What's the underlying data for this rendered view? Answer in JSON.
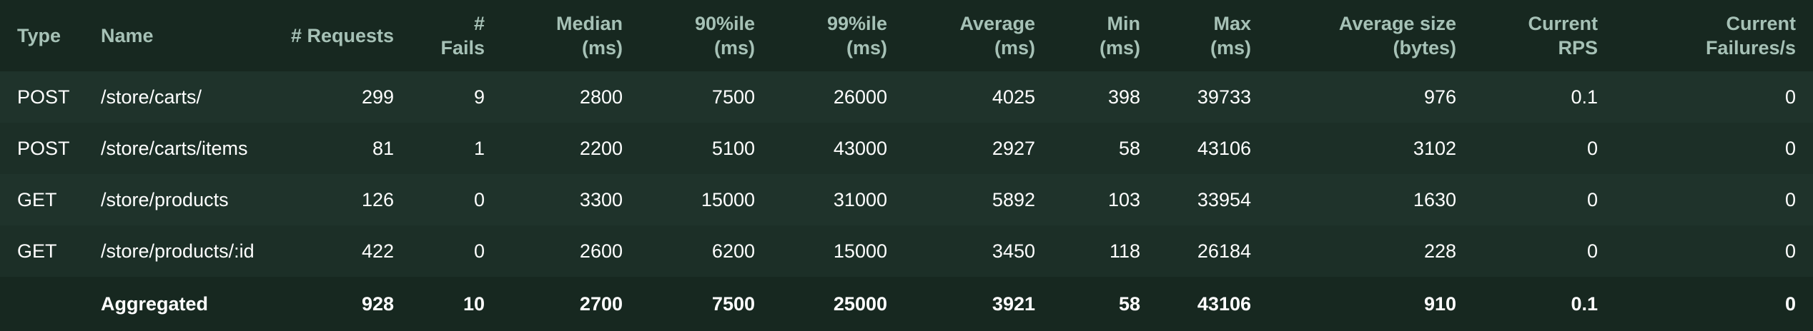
{
  "columns": {
    "type": "Type",
    "name": "Name",
    "requests": "# Requests",
    "fails": "# Fails",
    "median": "Median\n(ms)",
    "p90": "90%ile\n(ms)",
    "p99": "99%ile\n(ms)",
    "average": "Average\n(ms)",
    "min": "Min\n(ms)",
    "max": "Max\n(ms)",
    "avg_size": "Average size\n(bytes)",
    "rps": "Current\nRPS",
    "failures_s": "Current\nFailures/s"
  },
  "rows": [
    {
      "type": "POST",
      "name": "/store/carts/",
      "requests": "299",
      "fails": "9",
      "median": "2800",
      "p90": "7500",
      "p99": "26000",
      "average": "4025",
      "min": "398",
      "max": "39733",
      "avg_size": "976",
      "rps": "0.1",
      "failures_s": "0"
    },
    {
      "type": "POST",
      "name": "/store/carts/items",
      "requests": "81",
      "fails": "1",
      "median": "2200",
      "p90": "5100",
      "p99": "43000",
      "average": "2927",
      "min": "58",
      "max": "43106",
      "avg_size": "3102",
      "rps": "0",
      "failures_s": "0"
    },
    {
      "type": "GET",
      "name": "/store/products",
      "requests": "126",
      "fails": "0",
      "median": "3300",
      "p90": "15000",
      "p99": "31000",
      "average": "5892",
      "min": "103",
      "max": "33954",
      "avg_size": "1630",
      "rps": "0",
      "failures_s": "0"
    },
    {
      "type": "GET",
      "name": "/store/products/:id",
      "requests": "422",
      "fails": "0",
      "median": "2600",
      "p90": "6200",
      "p99": "15000",
      "average": "3450",
      "min": "118",
      "max": "26184",
      "avg_size": "228",
      "rps": "0",
      "failures_s": "0"
    }
  ],
  "aggregated": {
    "type": "",
    "name": "Aggregated",
    "requests": "928",
    "fails": "10",
    "median": "2700",
    "p90": "7500",
    "p99": "25000",
    "average": "3921",
    "min": "58",
    "max": "43106",
    "avg_size": "910",
    "rps": "0.1",
    "failures_s": "0"
  },
  "colors": {
    "header_bg": "#172820",
    "row_bg_a": "#1f332b",
    "row_bg_b": "#1c2f27",
    "header_text": "#a6c1b6",
    "cell_text": "#ffffff"
  }
}
